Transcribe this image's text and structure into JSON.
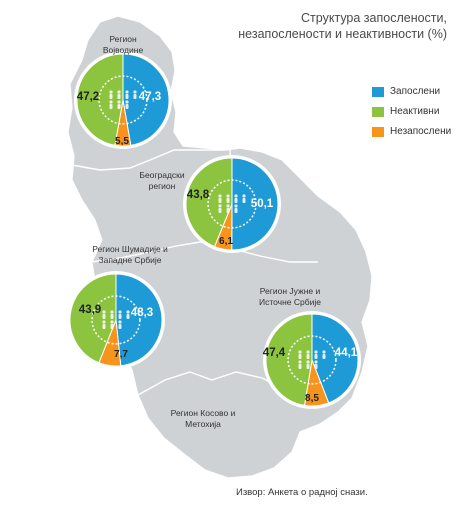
{
  "title_line1": "Структура запослености,",
  "title_line2": "незапослености и неактивности (%)",
  "legend": [
    {
      "label": "Запослени",
      "color": "#1e9ad6"
    },
    {
      "label": "Неактивни",
      "color": "#8cc43f"
    },
    {
      "label": "Незапослени",
      "color": "#f7941d"
    }
  ],
  "source": "Извор: Анкета о радној снази.",
  "region_kosovo": [
    "Регион Косово и",
    "Метохија"
  ],
  "chart_data": {
    "type": "pie",
    "series_names": [
      "Запослени",
      "Незапослени",
      "Неактивни"
    ],
    "colors": [
      "#1e9ad6",
      "#f7941d",
      "#8cc43f"
    ],
    "charts": [
      {
        "region": [
          "Регион",
          "Војводине"
        ],
        "values": [
          47.3,
          5.5,
          47.2
        ],
        "labels": [
          "47,3",
          "5,5",
          "47,2"
        ]
      },
      {
        "region": [
          "Београдски",
          "регион"
        ],
        "values": [
          50.1,
          6.1,
          43.8
        ],
        "labels": [
          "50,1",
          "6,1",
          "43,8"
        ]
      },
      {
        "region": [
          "Регион Шумадије и",
          "Западне Србије"
        ],
        "values": [
          48.3,
          7.7,
          43.9
        ],
        "labels": [
          "48,3",
          "7,7",
          "43,9"
        ]
      },
      {
        "region": [
          "Регион Јужне и",
          "Источне Србије"
        ],
        "values": [
          44.1,
          8.5,
          47.4
        ],
        "labels": [
          "44,1",
          "8,5",
          "47,4"
        ]
      }
    ]
  }
}
